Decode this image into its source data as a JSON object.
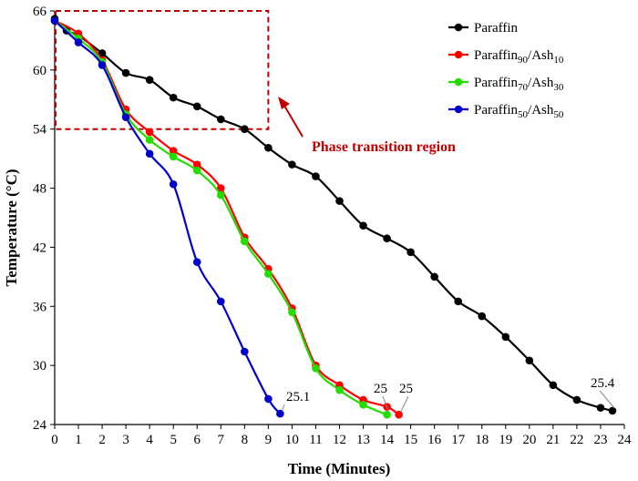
{
  "chart_data": {
    "type": "line",
    "title": "",
    "xlabel": "Time (Minutes)",
    "ylabel": "Temperature (°C)",
    "xlim": [
      0,
      24
    ],
    "ylim": [
      24,
      66
    ],
    "xticks": [
      "0",
      "1",
      "2",
      "3",
      "4",
      "5",
      "6",
      "7",
      "8",
      "9",
      "10",
      "11",
      "12",
      "13",
      "14",
      "15",
      "16",
      "17",
      "18",
      "19",
      "20",
      "21",
      "22",
      "23",
      "24"
    ],
    "yticks": [
      "24",
      "30",
      "36",
      "42",
      "48",
      "54",
      "60",
      "66"
    ],
    "grid": false,
    "legend_position": "top-right",
    "series": [
      {
        "name": "Paraffin",
        "base": "Paraffin",
        "sub1": "",
        "sub2": "",
        "color": "#000000",
        "points": [
          [
            0,
            65.2
          ],
          [
            0.5,
            64.0
          ],
          [
            1,
            63.5
          ],
          [
            2,
            61.7
          ],
          [
            3,
            59.7
          ],
          [
            4,
            59.0
          ],
          [
            5,
            57.2
          ],
          [
            6,
            56.3
          ],
          [
            7,
            55.0
          ],
          [
            8,
            54.0
          ],
          [
            9,
            52.1
          ],
          [
            10,
            50.4
          ],
          [
            11,
            49.2
          ],
          [
            12,
            46.7
          ],
          [
            13,
            44.2
          ],
          [
            14,
            42.9
          ],
          [
            15,
            41.5
          ],
          [
            16,
            39.0
          ],
          [
            17,
            36.5
          ],
          [
            18,
            35.0
          ],
          [
            19,
            32.9
          ],
          [
            20,
            30.5
          ],
          [
            21,
            28.0
          ],
          [
            22,
            26.5
          ],
          [
            23,
            25.7
          ],
          [
            23.5,
            25.4
          ]
        ]
      },
      {
        "name": "Paraffin90/Ash10",
        "base": "Paraffin",
        "sub1": "90",
        "sub2": "10",
        "color": "#ff0000",
        "points": [
          [
            0,
            65.0
          ],
          [
            1,
            63.7
          ],
          [
            2,
            61.0
          ],
          [
            3,
            56.0
          ],
          [
            4,
            53.7
          ],
          [
            5,
            51.8
          ],
          [
            6,
            50.4
          ],
          [
            7,
            48.0
          ],
          [
            8,
            43.0
          ],
          [
            9,
            39.8
          ],
          [
            10,
            35.8
          ],
          [
            11,
            30.0
          ],
          [
            12,
            28.0
          ],
          [
            13,
            26.5
          ],
          [
            14,
            25.8
          ],
          [
            14.5,
            25.0
          ]
        ]
      },
      {
        "name": "Paraffin70/Ash30",
        "base": "Paraffin",
        "sub1": "70",
        "sub2": "30",
        "color": "#22dd00",
        "points": [
          [
            0,
            65.0
          ],
          [
            1,
            63.2
          ],
          [
            2,
            60.8
          ],
          [
            3,
            55.5
          ],
          [
            4,
            52.9
          ],
          [
            5,
            51.2
          ],
          [
            6,
            49.8
          ],
          [
            7,
            47.3
          ],
          [
            8,
            42.6
          ],
          [
            9,
            39.3
          ],
          [
            10,
            35.4
          ],
          [
            11,
            29.7
          ],
          [
            12,
            27.5
          ],
          [
            13,
            26.0
          ],
          [
            14,
            25.0
          ]
        ]
      },
      {
        "name": "Paraffin50/Ash50",
        "base": "Paraffin",
        "sub1": "50",
        "sub2": "50",
        "color": "#0000cc",
        "points": [
          [
            0,
            65.0
          ],
          [
            1,
            62.8
          ],
          [
            2,
            60.5
          ],
          [
            3,
            55.2
          ],
          [
            4,
            51.5
          ],
          [
            5,
            48.4
          ],
          [
            6,
            40.5
          ],
          [
            7,
            36.5
          ],
          [
            8,
            31.4
          ],
          [
            9,
            26.6
          ],
          [
            9.5,
            25.1
          ]
        ]
      }
    ],
    "annotations": {
      "region_label": "Phase transition region",
      "region_x": [
        0,
        9
      ],
      "region_y": [
        54,
        66
      ],
      "end_labels": [
        {
          "series": "Paraffin50/Ash50",
          "text": "25.1",
          "x": 9.5,
          "y": 25.1
        },
        {
          "series": "Paraffin70/Ash30",
          "text": "25",
          "x": 14,
          "y": 25.0
        },
        {
          "series": "Paraffin90/Ash10",
          "text": "25",
          "x": 14.5,
          "y": 25.0
        },
        {
          "series": "Paraffin",
          "text": "25.4",
          "x": 23.5,
          "y": 25.4
        }
      ]
    }
  }
}
